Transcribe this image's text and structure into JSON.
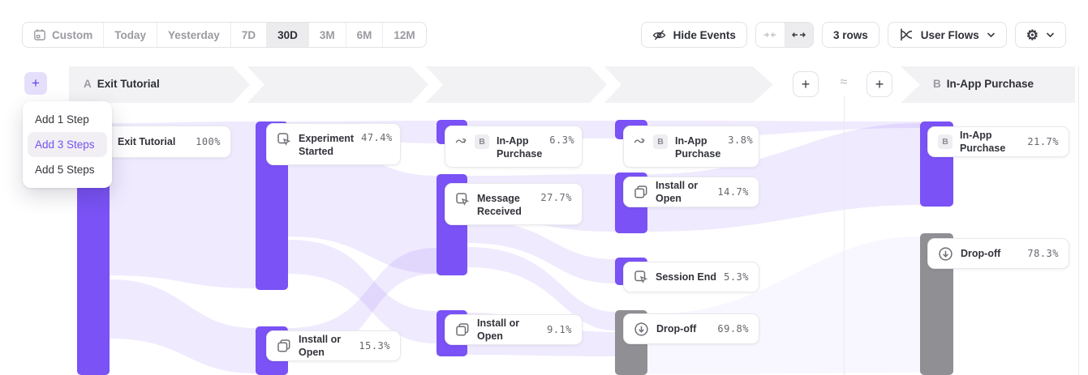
{
  "colors": {
    "accent_purple": "#7a52f5",
    "accent_purple_light": "#e6dffb",
    "dropoff_gray": "#8f8f94",
    "header_band": "#f2f2f4",
    "selected_item_text": "#7452ef",
    "ribbon_tint": "#7a52f5"
  },
  "toolbar": {
    "date_ranges": [
      {
        "label": "Custom",
        "icon": "calendar-icon",
        "selected": false
      },
      {
        "label": "Today",
        "selected": false
      },
      {
        "label": "Yesterday",
        "selected": false
      },
      {
        "label": "7D",
        "selected": false
      },
      {
        "label": "30D",
        "selected": true
      },
      {
        "label": "3M",
        "selected": false
      },
      {
        "label": "6M",
        "selected": false
      },
      {
        "label": "12M",
        "selected": false
      }
    ],
    "hide_events_label": "Hide Events",
    "rows_label": "3 rows",
    "view_label": "User Flows"
  },
  "add_step_menu": {
    "items": [
      {
        "label": "Add 1 Step",
        "selected": false
      },
      {
        "label": "Add 3 Steps",
        "selected": true
      },
      {
        "label": "Add 5 Steps",
        "selected": false
      }
    ]
  },
  "flow_header": {
    "step_a_badge": "A",
    "step_a_label": "Exit Tutorial",
    "step_b_badge": "B",
    "step_b_label": "In-App Purchase",
    "break_symbol": "≈"
  },
  "chart_data": {
    "type": "sankey",
    "title": "User Flows: Exit Tutorial → In-App Purchase",
    "nodes": [
      {
        "id": "exit-tutorial",
        "column": 0,
        "label": "Exit Tutorial",
        "value_pct": "100%",
        "icon": "event",
        "color": "purple"
      },
      {
        "id": "experiment-started",
        "column": 1,
        "label": "Experiment Started",
        "value_pct": "47.4%",
        "icon": "event",
        "color": "purple"
      },
      {
        "id": "install-or-open-1",
        "column": 1,
        "label": "Install or Open",
        "value_pct": "15.3%",
        "icon": "install",
        "color": "purple"
      },
      {
        "id": "in-app-purchase-1",
        "column": 2,
        "label": "In-App Purchase",
        "value_pct": "6.3%",
        "icon": "goal-b",
        "color": "purple"
      },
      {
        "id": "message-received",
        "column": 2,
        "label": "Message Received",
        "value_pct": "27.7%",
        "icon": "event",
        "color": "purple"
      },
      {
        "id": "install-or-open-2",
        "column": 2,
        "label": "Install or Open",
        "value_pct": "9.1%",
        "icon": "install",
        "color": "purple"
      },
      {
        "id": "in-app-purchase-2",
        "column": 3,
        "label": "In-App Purchase",
        "value_pct": "3.8%",
        "icon": "goal-b",
        "color": "purple"
      },
      {
        "id": "install-or-open-3",
        "column": 3,
        "label": "Install or Open",
        "value_pct": "14.7%",
        "icon": "install",
        "color": "purple"
      },
      {
        "id": "session-end",
        "column": 3,
        "label": "Session End",
        "value_pct": "5.3%",
        "icon": "event",
        "color": "purple"
      },
      {
        "id": "drop-off-1",
        "column": 3,
        "label": "Drop-off",
        "value_pct": "69.8%",
        "icon": "dropoff",
        "color": "gray"
      },
      {
        "id": "in-app-purchase-b",
        "column": 4,
        "label": "In-App Purchase",
        "value_pct": "21.7%",
        "icon": "badge-b",
        "color": "purple"
      },
      {
        "id": "drop-off-2",
        "column": 4,
        "label": "Drop-off",
        "value_pct": "78.3%",
        "icon": "dropoff",
        "color": "gray"
      }
    ]
  }
}
